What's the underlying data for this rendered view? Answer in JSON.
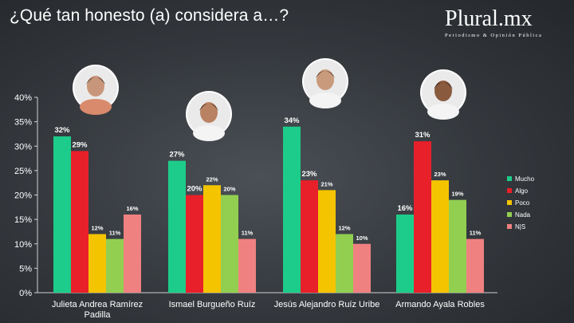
{
  "header": {
    "title": "¿Qué tan honesto (a) considera a…?",
    "brand": "Plural.mx",
    "brand_tagline": "Periodismo & Opinión Pública"
  },
  "colors": {
    "Mucho": "#1dcc8a",
    "Algo": "#e8202a",
    "Poco": "#f5c400",
    "Nada": "#92cf50",
    "N|S": "#f08181"
  },
  "chart_data": {
    "type": "bar",
    "title": "¿Qué tan honesto (a) considera a…?",
    "categories": [
      "Julieta Andrea Ramírez Padilla",
      "Ismael Burgueño Ruíz",
      "Jesús Alejandro Ruíz Uribe",
      "Armando Ayala Robles"
    ],
    "series": [
      {
        "name": "Mucho",
        "values": [
          32,
          27,
          34,
          16
        ]
      },
      {
        "name": "Algo",
        "values": [
          29,
          20,
          23,
          31
        ]
      },
      {
        "name": "Poco",
        "values": [
          12,
          22,
          21,
          23
        ]
      },
      {
        "name": "Nada",
        "values": [
          11,
          20,
          12,
          19
        ]
      },
      {
        "name": "N|S",
        "values": [
          16,
          11,
          10,
          11
        ]
      }
    ],
    "data_labels": [
      [
        "32%",
        "29%",
        "12%",
        "11%",
        "16%"
      ],
      [
        "27%",
        "20%",
        "22%",
        "20%",
        "11%"
      ],
      [
        "34%",
        "23%",
        "21%",
        "12%",
        "10%"
      ],
      [
        "16%",
        "31%",
        "23%",
        "19%",
        "11%"
      ]
    ],
    "yticks": [
      "0%",
      "5%",
      "10%",
      "15%",
      "20%",
      "25%",
      "30%",
      "35%",
      "40%"
    ],
    "ylim": [
      0,
      40
    ],
    "grid": false,
    "legend": "right",
    "portraits": [
      "portrait-1-icon",
      "portrait-2-icon",
      "portrait-3-icon",
      "portrait-4-icon"
    ]
  }
}
